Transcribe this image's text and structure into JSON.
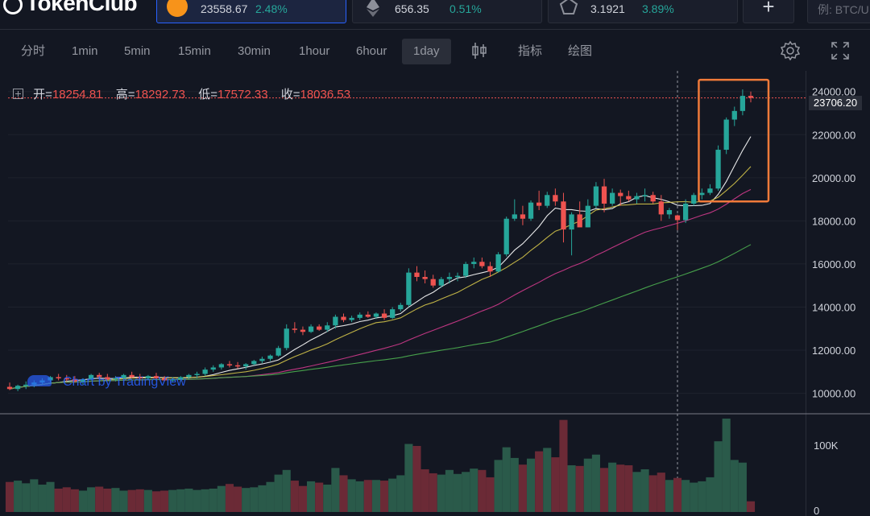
{
  "app": {
    "logo_text": "TokenClub"
  },
  "tickers": [
    {
      "icon": "bitcoin-icon",
      "price": "23558.67",
      "change": "2.48%",
      "active": true
    },
    {
      "icon": "ethereum-icon",
      "price": "656.35",
      "change": "0.51%",
      "active": false
    },
    {
      "icon": "token-icon",
      "price": "3.1921",
      "change": "3.89%",
      "active": false
    }
  ],
  "add_button_label": "+",
  "search": {
    "placeholder": "例: BTC/U"
  },
  "toolbar": {
    "timeframes": [
      "分时",
      "1min",
      "5min",
      "15min",
      "30min",
      "1hour",
      "6hour",
      "1day"
    ],
    "active_timeframe": "1day",
    "indicators_label": "指标",
    "draw_label": "绘图"
  },
  "legend": {
    "open_label": "开=",
    "open": "18254.81",
    "high_label": "高=",
    "high": "18292.73",
    "low_label": "低=",
    "low": "17572.33",
    "close_label": "收=",
    "close": "18036.53"
  },
  "watermark": "Chart by TradingView",
  "colors": {
    "up": "#26a69a",
    "down": "#ef5350",
    "accent": "#2962ff",
    "highlight_box": "#f07a3a",
    "ma1": "#ffffff",
    "ma2": "#d4c44a",
    "ma3": "#d03a8c",
    "ma4": "#4caf50"
  },
  "chart_data": {
    "type": "candlestick",
    "interval": "1day",
    "y_ticks": [
      "10000.00",
      "12000.00",
      "14000.00",
      "16000.00",
      "18000.00",
      "20000.00",
      "22000.00",
      "24000.00"
    ],
    "ylim": [
      9200,
      24700
    ],
    "last_price_label": "23706.20",
    "last_price": 23706.2,
    "volume_ticks": [
      "100K",
      "0"
    ],
    "volume_max": 140000,
    "highlight_last_n": 6,
    "candles": [
      [
        10300,
        10500,
        10150,
        10200
      ],
      [
        10200,
        10400,
        10100,
        10350
      ],
      [
        10350,
        10550,
        10200,
        10400
      ],
      [
        10400,
        10600,
        10280,
        10500
      ],
      [
        10500,
        10700,
        10400,
        10600
      ],
      [
        10600,
        10800,
        10500,
        10750
      ],
      [
        10750,
        10900,
        10600,
        10700
      ],
      [
        10700,
        10850,
        10550,
        10650
      ],
      [
        10650,
        10800,
        10500,
        10550
      ],
      [
        10550,
        10700,
        10400,
        10650
      ],
      [
        10650,
        10900,
        10600,
        10850
      ],
      [
        10850,
        10950,
        10700,
        10750
      ],
      [
        10750,
        10900,
        10600,
        10650
      ],
      [
        10650,
        10800,
        10550,
        10700
      ],
      [
        10700,
        10900,
        10650,
        10850
      ],
      [
        10850,
        11000,
        10700,
        10750
      ],
      [
        10750,
        10900,
        10600,
        10700
      ],
      [
        10700,
        10850,
        10600,
        10800
      ],
      [
        10800,
        10950,
        10650,
        10700
      ],
      [
        10700,
        10800,
        10550,
        10600
      ],
      [
        10600,
        10750,
        10500,
        10650
      ],
      [
        10650,
        10800,
        10550,
        10750
      ],
      [
        10750,
        10900,
        10650,
        10850
      ],
      [
        10850,
        11000,
        10700,
        10900
      ],
      [
        10900,
        11200,
        10800,
        11100
      ],
      [
        11100,
        11300,
        11000,
        11200
      ],
      [
        11200,
        11400,
        11100,
        11350
      ],
      [
        11350,
        11500,
        11200,
        11300
      ],
      [
        11300,
        11450,
        11150,
        11250
      ],
      [
        11250,
        11400,
        11100,
        11350
      ],
      [
        11350,
        11550,
        11300,
        11500
      ],
      [
        11500,
        11700,
        11400,
        11600
      ],
      [
        11600,
        11800,
        11500,
        11750
      ],
      [
        11750,
        12200,
        11700,
        12100
      ],
      [
        12100,
        13200,
        12000,
        13000
      ],
      [
        13000,
        13300,
        12800,
        12950
      ],
      [
        12950,
        13100,
        12700,
        12850
      ],
      [
        12850,
        13200,
        12800,
        13100
      ],
      [
        13100,
        13200,
        12900,
        12950
      ],
      [
        12950,
        13300,
        12850,
        13150
      ],
      [
        13150,
        13650,
        13000,
        13550
      ],
      [
        13550,
        13700,
        13300,
        13400
      ],
      [
        13400,
        13600,
        13300,
        13500
      ],
      [
        13500,
        13750,
        13400,
        13650
      ],
      [
        13650,
        13800,
        13500,
        13550
      ],
      [
        13550,
        13750,
        13450,
        13700
      ],
      [
        13700,
        13900,
        13400,
        13500
      ],
      [
        13500,
        14000,
        13450,
        13900
      ],
      [
        13900,
        14200,
        13800,
        14100
      ],
      [
        14100,
        15800,
        14000,
        15600
      ],
      [
        15600,
        15900,
        15200,
        15400
      ],
      [
        15400,
        15700,
        15100,
        15300
      ],
      [
        15300,
        15500,
        14900,
        15000
      ],
      [
        15000,
        15400,
        14900,
        15300
      ],
      [
        15300,
        15600,
        15100,
        15400
      ],
      [
        15400,
        15600,
        15200,
        15450
      ],
      [
        15450,
        16100,
        15350,
        16000
      ],
      [
        16000,
        16300,
        15800,
        16100
      ],
      [
        16100,
        16300,
        15800,
        15900
      ],
      [
        15900,
        16100,
        15400,
        15650
      ],
      [
        15650,
        16550,
        15600,
        16450
      ],
      [
        16450,
        18200,
        16350,
        18100
      ],
      [
        18100,
        19000,
        18000,
        18300
      ],
      [
        18300,
        18700,
        17800,
        18100
      ],
      [
        18100,
        18950,
        18000,
        18850
      ],
      [
        18850,
        19400,
        18500,
        18700
      ],
      [
        18700,
        19350,
        18600,
        19200
      ],
      [
        19200,
        19500,
        18700,
        18900
      ],
      [
        18900,
        19300,
        17000,
        17600
      ],
      [
        17600,
        18400,
        16400,
        18300
      ],
      [
        18300,
        18900,
        17800,
        17700
      ],
      [
        17700,
        19000,
        17700,
        18700
      ],
      [
        18700,
        19800,
        18600,
        19600
      ],
      [
        19600,
        19950,
        18400,
        18800
      ],
      [
        18800,
        19500,
        18700,
        19300
      ],
      [
        19300,
        19450,
        18700,
        19150
      ],
      [
        19150,
        19400,
        18900,
        19000
      ],
      [
        19000,
        19300,
        18800,
        19150
      ],
      [
        19150,
        19500,
        18900,
        19200
      ],
      [
        19200,
        19350,
        18800,
        18900
      ],
      [
        18900,
        19200,
        18000,
        18300
      ],
      [
        18300,
        18600,
        18100,
        18500
      ],
      [
        18254.81,
        18292.73,
        17572.33,
        18036.53
      ],
      [
        18036.53,
        19000,
        17900,
        18800
      ],
      [
        18800,
        19300,
        18700,
        19200
      ],
      [
        19200,
        19500,
        19000,
        19300
      ],
      [
        19300,
        19700,
        19200,
        19500
      ],
      [
        19500,
        21500,
        19400,
        21300
      ],
      [
        21300,
        22800,
        21100,
        22700
      ],
      [
        22700,
        23300,
        22400,
        23100
      ],
      [
        23100,
        24100,
        22900,
        23800
      ],
      [
        23800,
        24000,
        23500,
        23706.2
      ]
    ],
    "volume": [
      45000,
      47000,
      43000,
      49000,
      41000,
      45000,
      35000,
      37000,
      34000,
      32000,
      37000,
      38000,
      35000,
      36000,
      32000,
      33000,
      34000,
      33000,
      31000,
      32000,
      33000,
      34000,
      35000,
      33000,
      34000,
      35000,
      39000,
      42000,
      38000,
      36000,
      37000,
      40000,
      45000,
      56000,
      63000,
      47000,
      39000,
      46000,
      44000,
      41000,
      66000,
      55000,
      49000,
      46000,
      48000,
      48000,
      47000,
      50000,
      55000,
      102000,
      99000,
      64000,
      58000,
      56000,
      63000,
      57000,
      60000,
      65000,
      63000,
      52000,
      78000,
      97000,
      81000,
      71000,
      80000,
      91000,
      96000,
      82000,
      138000,
      70000,
      69000,
      80000,
      86000,
      66000,
      74000,
      71000,
      70000,
      60000,
      64000,
      55000,
      59000,
      48000,
      51000,
      48000,
      44000,
      46000,
      52000,
      106000,
      140000,
      78000,
      74000,
      16000
    ],
    "moving_averages": [
      {
        "color": "#ffffff",
        "period": 7
      },
      {
        "color": "#d4c44a",
        "period": 12
      },
      {
        "color": "#d03a8c",
        "period": 30
      },
      {
        "color": "#4caf50",
        "period": 60
      }
    ]
  }
}
